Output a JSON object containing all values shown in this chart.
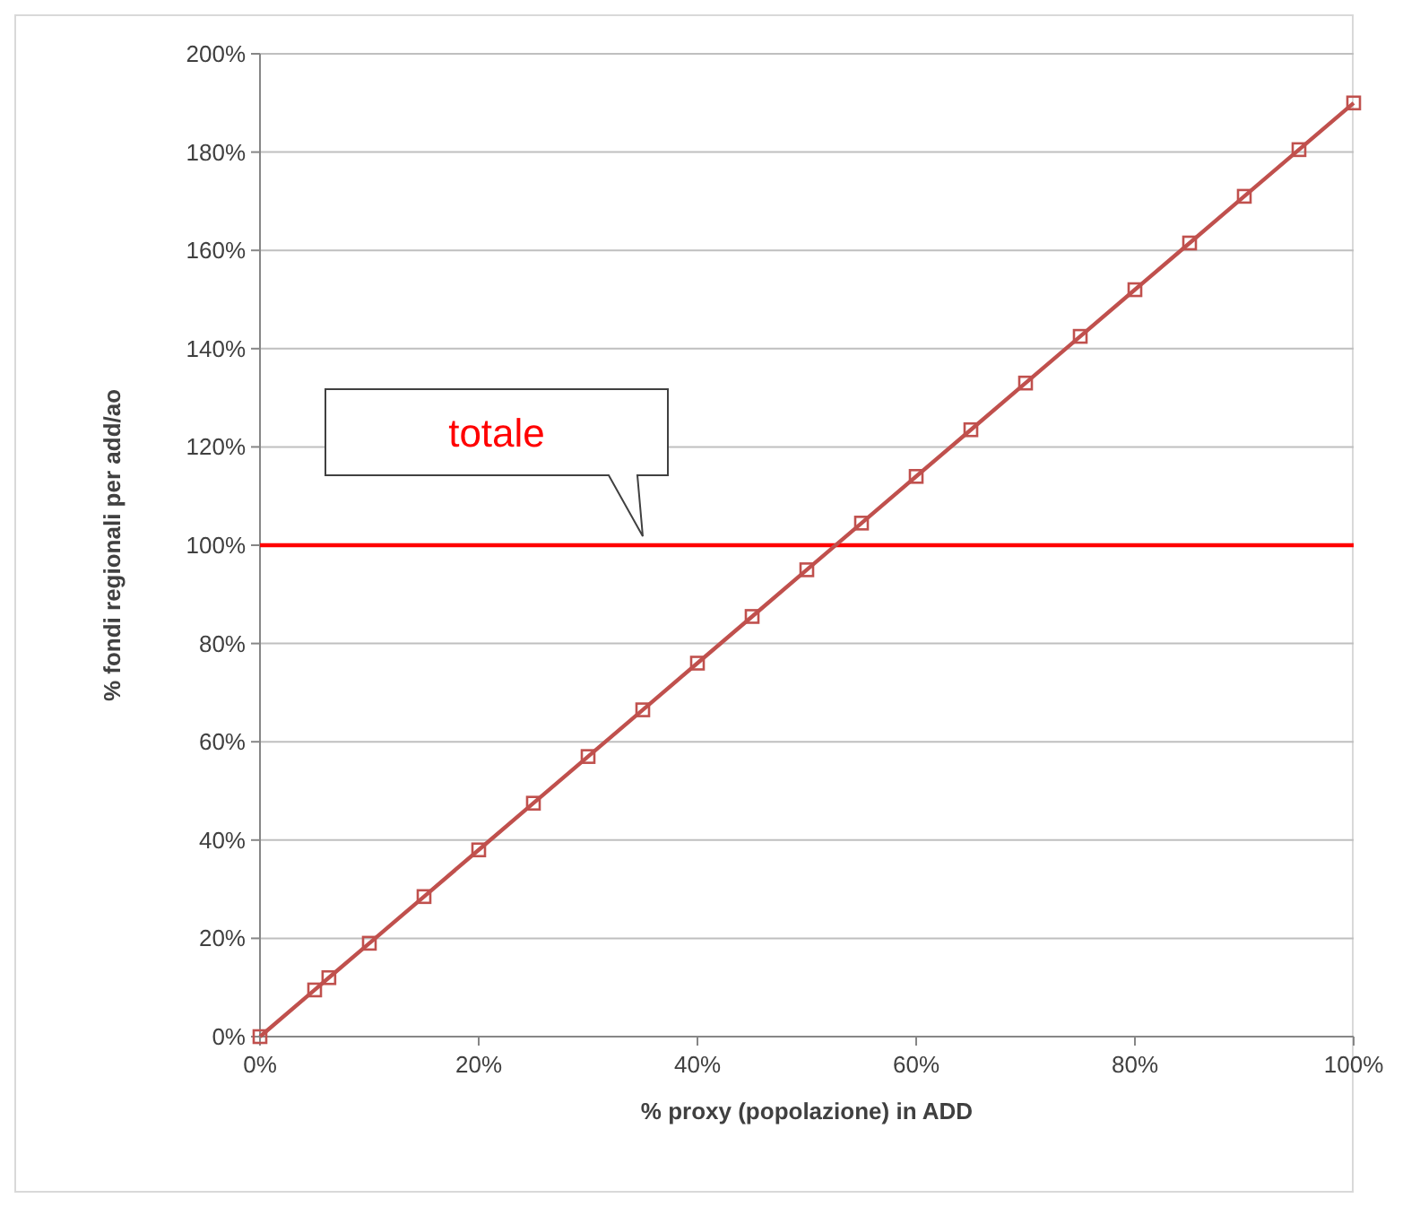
{
  "chart_data": {
    "type": "line",
    "xlabel": "% proxy (popolazione) in ADD",
    "ylabel": "% fondi regionali per add/ao",
    "x": [
      0,
      5,
      6.3,
      10,
      15,
      20,
      25,
      30,
      35,
      40,
      45,
      50,
      55,
      60,
      65,
      70,
      75,
      80,
      85,
      90,
      95,
      100
    ],
    "series": [
      {
        "color": "#c0504d",
        "values": [
          0,
          9.5,
          12,
          19,
          28.5,
          38,
          47.5,
          57,
          66.5,
          76,
          85.5,
          95,
          104.5,
          114,
          123.5,
          133,
          142.5,
          152,
          161.5,
          171,
          180.5,
          190
        ]
      }
    ],
    "marker": "square",
    "line_style": "solid",
    "grid": "y",
    "xlim": [
      0,
      100
    ],
    "xticks": [
      {
        "value": 0,
        "label": "0%"
      },
      {
        "value": 20,
        "label": "20%"
      },
      {
        "value": 40,
        "label": "40%"
      },
      {
        "value": 60,
        "label": "60%"
      },
      {
        "value": 80,
        "label": "80%"
      },
      {
        "value": 100,
        "label": "100%"
      }
    ],
    "ylim": [
      0,
      200
    ],
    "yticks": [
      {
        "value": 0,
        "label": "0%"
      },
      {
        "value": 20,
        "label": "20%"
      },
      {
        "value": 40,
        "label": "40%"
      },
      {
        "value": 60,
        "label": "60%"
      },
      {
        "value": 80,
        "label": "80%"
      },
      {
        "value": 100,
        "label": "100%"
      },
      {
        "value": 120,
        "label": "120%"
      },
      {
        "value": 140,
        "label": "140%"
      },
      {
        "value": 160,
        "label": "160%"
      },
      {
        "value": 180,
        "label": "180%"
      },
      {
        "value": 200,
        "label": "200%"
      }
    ],
    "ref_lines": [
      {
        "axis": "y",
        "value": 100,
        "color": "#ff0000"
      }
    ],
    "annotations": [
      "totale"
    ]
  }
}
